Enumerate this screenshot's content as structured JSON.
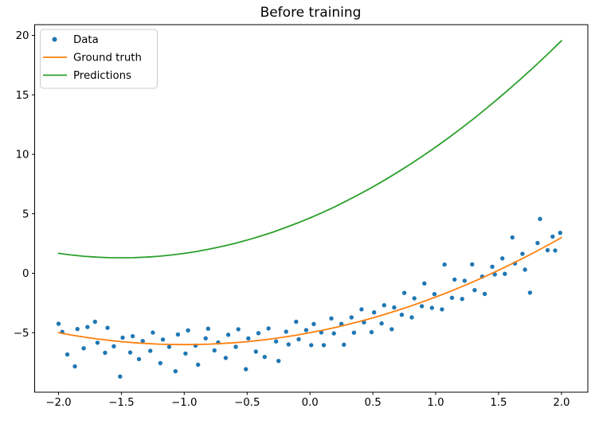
{
  "chart_data": {
    "type": "scatter",
    "title": "Before training",
    "xlabel": "",
    "ylabel": "",
    "grid": false,
    "background": "#ffffff",
    "legend": {
      "position": "upper left",
      "entries": [
        {
          "label": "Data",
          "marker": "dot",
          "color": "#1f77b4"
        },
        {
          "label": "Ground truth",
          "marker": "line",
          "color": "#ff7f0e"
        },
        {
          "label": "Predictions",
          "marker": "line",
          "color": "#2ca02c"
        }
      ]
    },
    "axes": {
      "xlim": [
        -2.19,
        2.21
      ],
      "ylim": [
        -10.0,
        20.9
      ],
      "x_ticks": [
        -2.0,
        -1.5,
        -1.0,
        -0.5,
        0.0,
        0.5,
        1.0,
        1.5,
        2.0
      ],
      "x_tick_labels": [
        "−2.0",
        "−1.5",
        "−1.0",
        "−0.5",
        "0.0",
        "0.5",
        "1.0",
        "1.5",
        "2.0"
      ],
      "y_ticks": [
        -5,
        0,
        5,
        10,
        15,
        20
      ],
      "y_tick_labels": [
        "−5",
        "0",
        "5",
        "10",
        "15",
        "20"
      ]
    },
    "series": [
      {
        "name": "Data",
        "type": "scatter",
        "color": "#1f77b4",
        "marker_radius": 2.7,
        "points": [
          [
            -2.0,
            -4.25
          ],
          [
            -1.97,
            -4.93
          ],
          [
            -1.93,
            -6.83
          ],
          [
            -1.87,
            -7.83
          ],
          [
            -1.85,
            -4.69
          ],
          [
            -1.8,
            -6.31
          ],
          [
            -1.77,
            -4.52
          ],
          [
            -1.71,
            -4.08
          ],
          [
            -1.69,
            -5.84
          ],
          [
            -1.63,
            -6.69
          ],
          [
            -1.61,
            -4.59
          ],
          [
            -1.56,
            -6.14
          ],
          [
            -1.51,
            -8.68
          ],
          [
            -1.49,
            -5.42
          ],
          [
            -1.43,
            -6.66
          ],
          [
            -1.41,
            -5.29
          ],
          [
            -1.36,
            -7.22
          ],
          [
            -1.33,
            -5.7
          ],
          [
            -1.27,
            -6.52
          ],
          [
            -1.25,
            -4.99
          ],
          [
            -1.19,
            -7.56
          ],
          [
            -1.17,
            -5.57
          ],
          [
            -1.12,
            -6.19
          ],
          [
            -1.07,
            -8.24
          ],
          [
            -1.05,
            -5.15
          ],
          [
            -0.99,
            -6.75
          ],
          [
            -0.97,
            -4.8
          ],
          [
            -0.91,
            -6.09
          ],
          [
            -0.89,
            -7.69
          ],
          [
            -0.83,
            -5.47
          ],
          [
            -0.81,
            -4.66
          ],
          [
            -0.76,
            -6.49
          ],
          [
            -0.73,
            -5.82
          ],
          [
            -0.67,
            -7.12
          ],
          [
            -0.65,
            -5.17
          ],
          [
            -0.59,
            -6.19
          ],
          [
            -0.57,
            -4.71
          ],
          [
            -0.51,
            -8.07
          ],
          [
            -0.49,
            -5.48
          ],
          [
            -0.43,
            -6.59
          ],
          [
            -0.41,
            -5.04
          ],
          [
            -0.36,
            -7.04
          ],
          [
            -0.33,
            -4.64
          ],
          [
            -0.27,
            -5.73
          ],
          [
            -0.25,
            -7.37
          ],
          [
            -0.19,
            -4.91
          ],
          [
            -0.17,
            -5.99
          ],
          [
            -0.11,
            -4.08
          ],
          [
            -0.09,
            -5.55
          ],
          [
            -0.03,
            -4.78
          ],
          [
            0.01,
            -6.05
          ],
          [
            0.03,
            -4.27
          ],
          [
            0.09,
            -4.98
          ],
          [
            0.11,
            -6.05
          ],
          [
            0.17,
            -3.8
          ],
          [
            0.19,
            -5.06
          ],
          [
            0.25,
            -4.26
          ],
          [
            0.27,
            -6.01
          ],
          [
            0.33,
            -3.71
          ],
          [
            0.35,
            -5.0
          ],
          [
            0.41,
            -3.04
          ],
          [
            0.43,
            -4.13
          ],
          [
            0.49,
            -4.96
          ],
          [
            0.51,
            -3.29
          ],
          [
            0.57,
            -4.22
          ],
          [
            0.59,
            -2.69
          ],
          [
            0.65,
            -4.71
          ],
          [
            0.67,
            -2.88
          ],
          [
            0.73,
            -3.49
          ],
          [
            0.75,
            -1.65
          ],
          [
            0.81,
            -3.71
          ],
          [
            0.83,
            -2.11
          ],
          [
            0.89,
            -2.77
          ],
          [
            0.91,
            -0.86
          ],
          [
            0.97,
            -2.91
          ],
          [
            0.99,
            -1.75
          ],
          [
            1.05,
            -3.04
          ],
          [
            1.07,
            0.73
          ],
          [
            1.13,
            -2.06
          ],
          [
            1.15,
            -0.53
          ],
          [
            1.21,
            -2.16
          ],
          [
            1.23,
            -0.63
          ],
          [
            1.29,
            0.75
          ],
          [
            1.31,
            -1.42
          ],
          [
            1.37,
            -0.28
          ],
          [
            1.39,
            -1.74
          ],
          [
            1.45,
            0.55
          ],
          [
            1.47,
            -0.1
          ],
          [
            1.53,
            1.25
          ],
          [
            1.55,
            -0.05
          ],
          [
            1.61,
            3.01
          ],
          [
            1.63,
            0.82
          ],
          [
            1.69,
            1.63
          ],
          [
            1.71,
            0.3
          ],
          [
            1.75,
            -1.63
          ],
          [
            1.81,
            2.54
          ],
          [
            1.83,
            4.57
          ],
          [
            1.89,
            1.94
          ],
          [
            1.93,
            3.08
          ],
          [
            1.95,
            1.91
          ],
          [
            1.99,
            3.4
          ]
        ]
      },
      {
        "name": "Ground truth",
        "type": "line",
        "color": "#ff7f0e",
        "width": 1.8,
        "equation": "y = x^2 + 2x - 5",
        "points": [
          [
            -2.0,
            -5.0
          ],
          [
            -1.9,
            -5.19
          ],
          [
            -1.8,
            -5.36
          ],
          [
            -1.7,
            -5.51
          ],
          [
            -1.6,
            -5.64
          ],
          [
            -1.5,
            -5.75
          ],
          [
            -1.4,
            -5.84
          ],
          [
            -1.3,
            -5.91
          ],
          [
            -1.2,
            -5.96
          ],
          [
            -1.1,
            -5.99
          ],
          [
            -1.0,
            -6.0
          ],
          [
            -0.9,
            -5.99
          ],
          [
            -0.8,
            -5.96
          ],
          [
            -0.7,
            -5.91
          ],
          [
            -0.6,
            -5.84
          ],
          [
            -0.5,
            -5.75
          ],
          [
            -0.4,
            -5.64
          ],
          [
            -0.3,
            -5.51
          ],
          [
            -0.2,
            -5.36
          ],
          [
            -0.1,
            -5.19
          ],
          [
            0.0,
            -5.0
          ],
          [
            0.1,
            -4.79
          ],
          [
            0.2,
            -4.56
          ],
          [
            0.3,
            -4.31
          ],
          [
            0.4,
            -4.04
          ],
          [
            0.5,
            -3.75
          ],
          [
            0.6,
            -3.44
          ],
          [
            0.7,
            -3.11
          ],
          [
            0.8,
            -2.76
          ],
          [
            0.9,
            -2.39
          ],
          [
            1.0,
            -2.0
          ],
          [
            1.1,
            -1.59
          ],
          [
            1.2,
            -1.16
          ],
          [
            1.3,
            -0.71
          ],
          [
            1.4,
            -0.24
          ],
          [
            1.5,
            0.25
          ],
          [
            1.6,
            0.76
          ],
          [
            1.7,
            1.29
          ],
          [
            1.8,
            1.84
          ],
          [
            1.9,
            2.41
          ],
          [
            2.0,
            3.0
          ]
        ]
      },
      {
        "name": "Predictions",
        "type": "line",
        "color": "#2ca02c",
        "width": 1.8,
        "points": [
          [
            -2.0,
            1.67
          ],
          [
            -1.9,
            1.54
          ],
          [
            -1.8,
            1.43
          ],
          [
            -1.7,
            1.36
          ],
          [
            -1.6,
            1.31
          ],
          [
            -1.5,
            1.3
          ],
          [
            -1.4,
            1.31
          ],
          [
            -1.3,
            1.36
          ],
          [
            -1.2,
            1.43
          ],
          [
            -1.1,
            1.54
          ],
          [
            -1.0,
            1.67
          ],
          [
            -0.9,
            1.83
          ],
          [
            -0.8,
            2.03
          ],
          [
            -0.7,
            2.25
          ],
          [
            -0.6,
            2.5
          ],
          [
            -0.5,
            2.79
          ],
          [
            -0.4,
            3.1
          ],
          [
            -0.3,
            3.44
          ],
          [
            -0.2,
            3.82
          ],
          [
            -0.1,
            4.22
          ],
          [
            0.0,
            4.65
          ],
          [
            0.1,
            5.11
          ],
          [
            0.2,
            5.6
          ],
          [
            0.3,
            6.13
          ],
          [
            0.4,
            6.68
          ],
          [
            0.5,
            7.26
          ],
          [
            0.6,
            7.87
          ],
          [
            0.7,
            8.51
          ],
          [
            0.8,
            9.18
          ],
          [
            0.9,
            9.88
          ],
          [
            1.0,
            10.61
          ],
          [
            1.1,
            11.37
          ],
          [
            1.2,
            12.16
          ],
          [
            1.3,
            12.98
          ],
          [
            1.4,
            13.83
          ],
          [
            1.5,
            14.71
          ],
          [
            1.6,
            15.62
          ],
          [
            1.7,
            16.56
          ],
          [
            1.8,
            17.52
          ],
          [
            1.9,
            18.52
          ],
          [
            2.0,
            19.55
          ]
        ]
      }
    ]
  }
}
